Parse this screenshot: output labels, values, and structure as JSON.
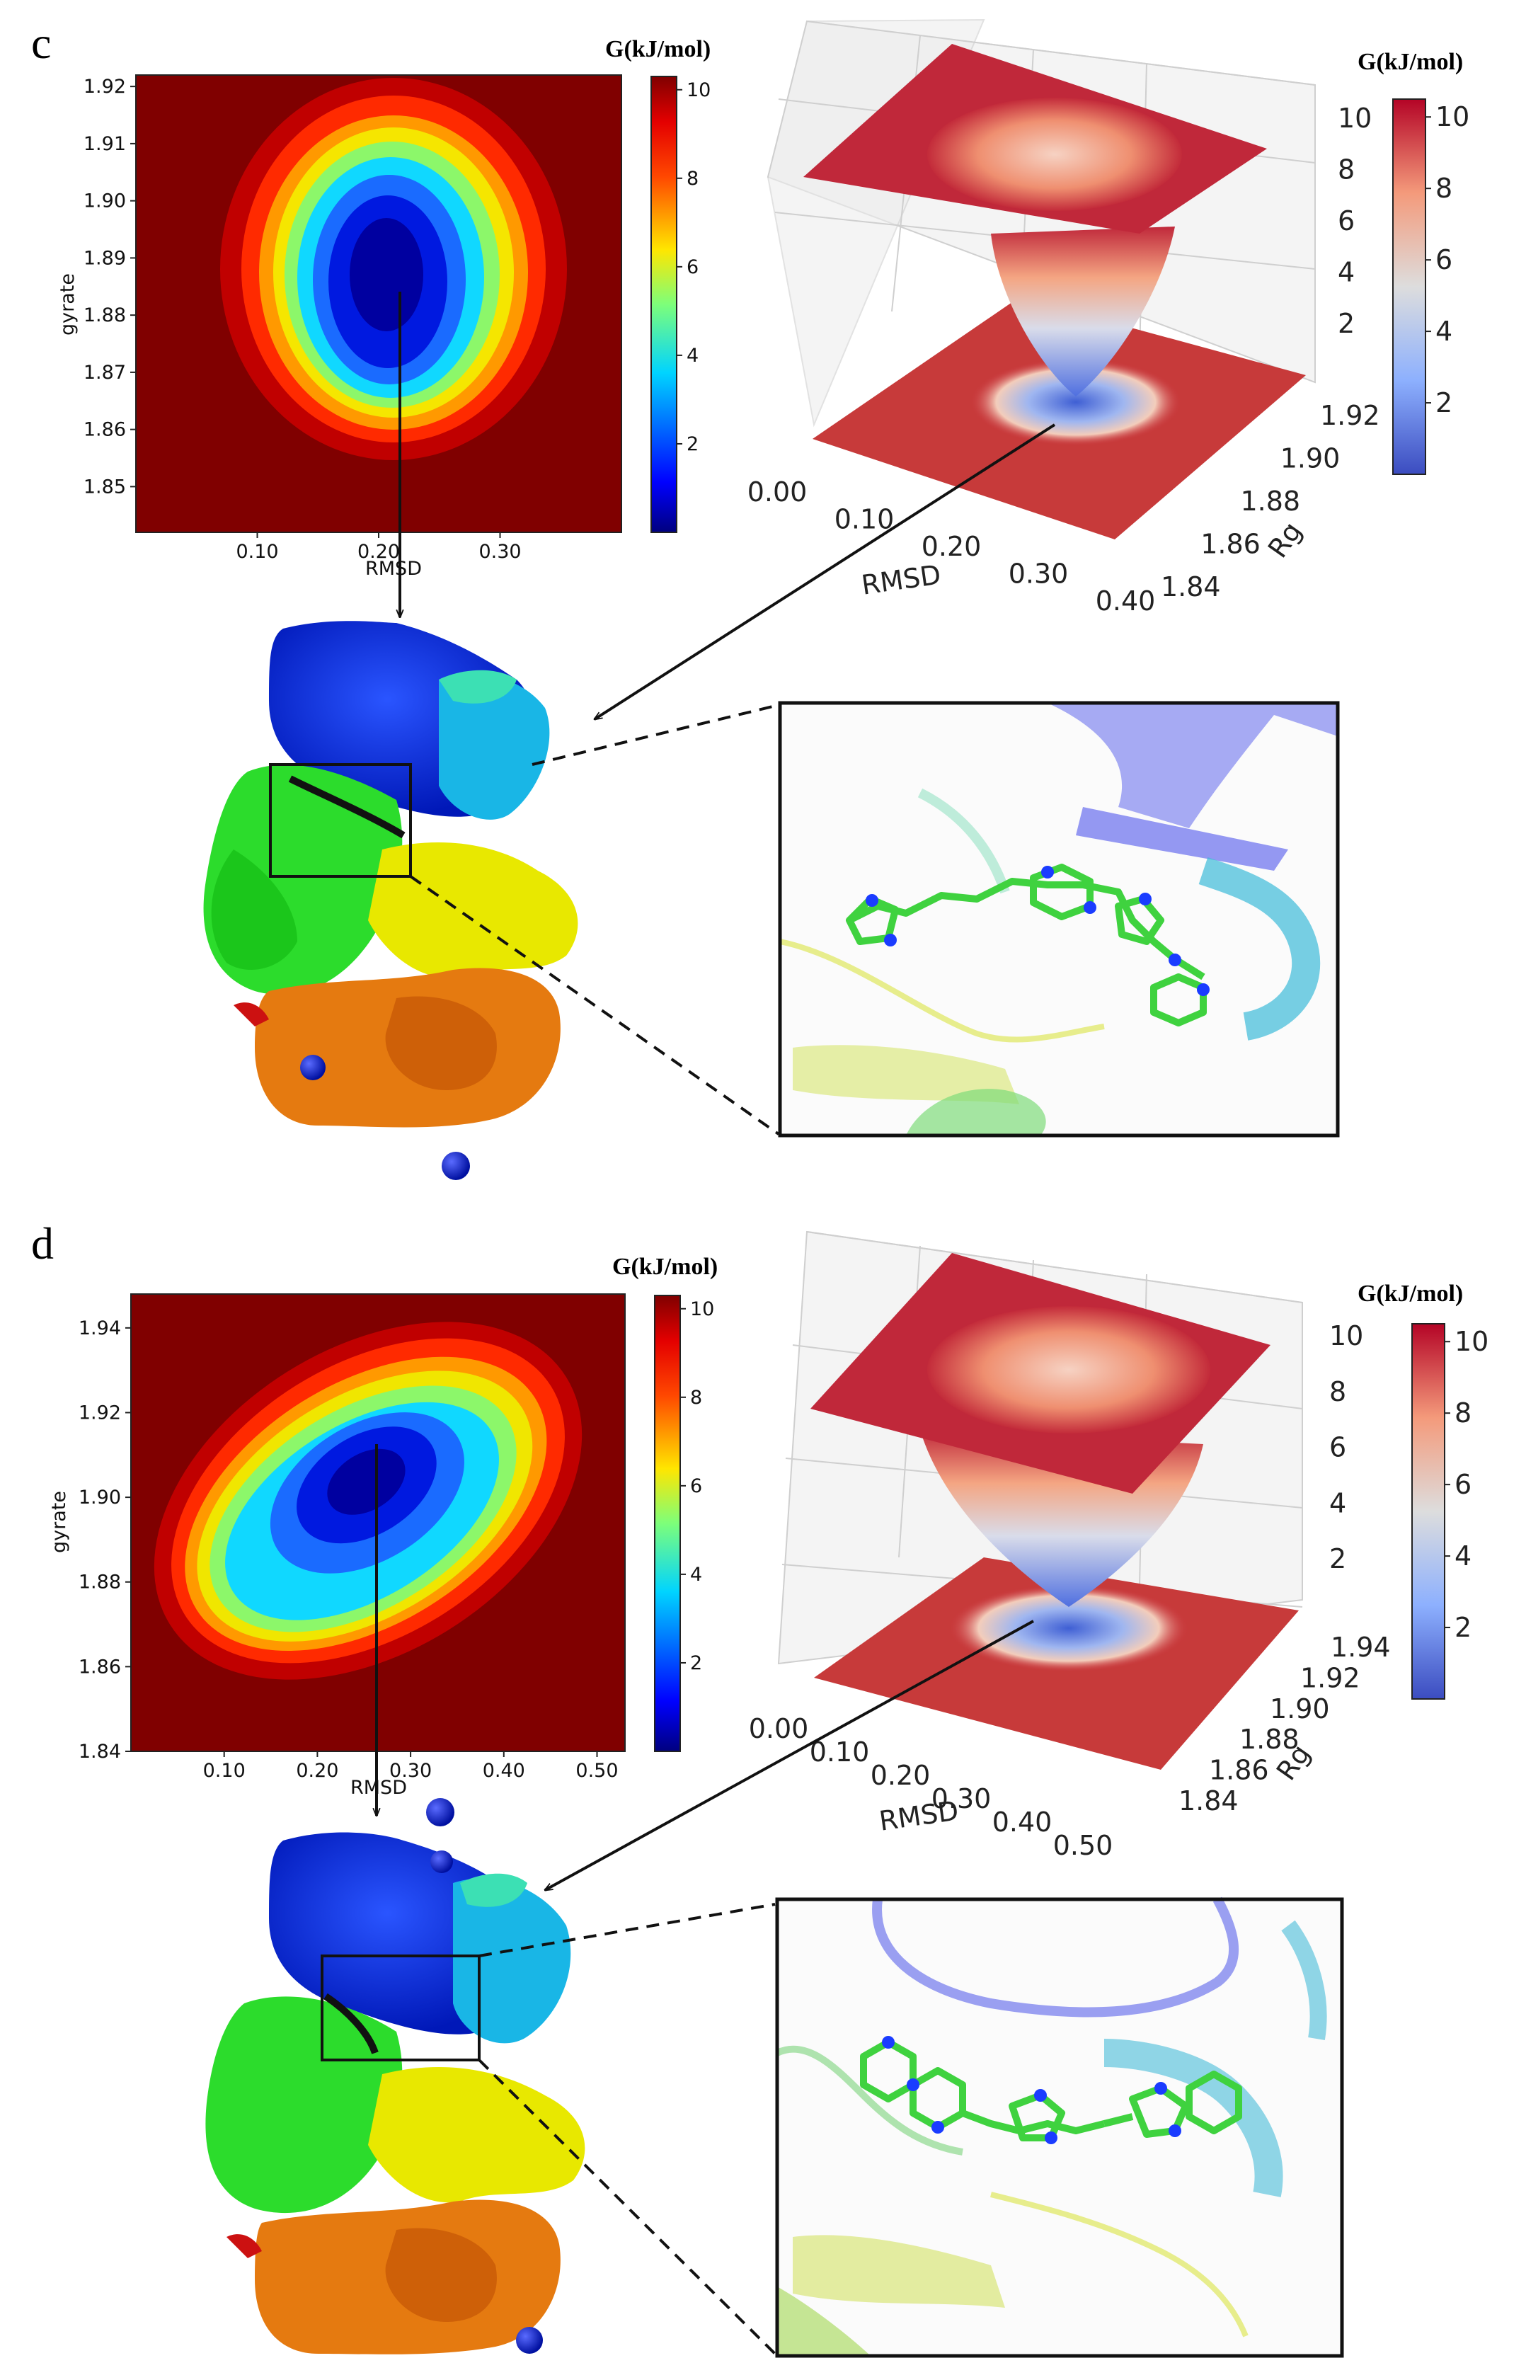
{
  "colors": {
    "jet_dark_red": "#800000",
    "coolwarm_red": "#b40426",
    "coolwarm_blue": "#3b4cc0",
    "arrow": "#111111"
  },
  "panels": [
    {
      "letter": "c",
      "colorbar_title_2d": "G(kJ/mol)",
      "colorbar_title_3d": "G(kJ/mol)",
      "icons": [
        "protein-surface-image",
        "ligand-closeup-image"
      ]
    },
    {
      "letter": "d",
      "colorbar_title_2d": "G(kJ/mol)",
      "colorbar_title_3d": "G(kJ/mol)",
      "icons": [
        "protein-surface-image",
        "ligand-closeup-image"
      ]
    }
  ],
  "chart_data": [
    {
      "panel": "c",
      "type": "heatmap",
      "xlabel": "RMSD",
      "ylabel": "gyrate",
      "xlim": [
        0.0,
        0.4
      ],
      "ylim": [
        1.842,
        1.922
      ],
      "xticks": [
        "0.10",
        "0.20",
        "0.30"
      ],
      "xtick_values": [
        0.1,
        0.2,
        0.3
      ],
      "yticks": [
        "1.85",
        "1.86",
        "1.87",
        "1.88",
        "1.89",
        "1.90",
        "1.91",
        "1.92"
      ],
      "ytick_values": [
        1.85,
        1.86,
        1.87,
        1.88,
        1.89,
        1.9,
        1.91,
        1.92
      ],
      "colorbar_ticks": [
        "2",
        "4",
        "6",
        "8",
        "10"
      ],
      "colorbar_range": [
        0,
        10.3
      ],
      "minimum": {
        "x": 0.21,
        "y": 1.884
      }
    },
    {
      "panel": "c",
      "type": "surface3d",
      "xlabel": "RMSD",
      "ylabel": "Rg",
      "xticks": [
        "0.00",
        "0.10",
        "0.20",
        "0.30",
        "0.40"
      ],
      "yticks": [
        "1.84",
        "1.86",
        "1.88",
        "1.90",
        "1.92"
      ],
      "zticks": [
        "2",
        "4",
        "6",
        "8",
        "10"
      ],
      "colorbar_ticks": [
        "2",
        "4",
        "6",
        "8",
        "10"
      ],
      "colorbar_range": [
        0,
        10.5
      ]
    },
    {
      "panel": "d",
      "type": "heatmap",
      "xlabel": "RMSD",
      "ylabel": "gyrate",
      "xlim": [
        0.0,
        0.53
      ],
      "ylim": [
        1.84,
        1.948
      ],
      "xticks": [
        "0.10",
        "0.20",
        "0.30",
        "0.40",
        "0.50"
      ],
      "xtick_values": [
        0.1,
        0.2,
        0.3,
        0.4,
        0.5
      ],
      "yticks": [
        "1.84",
        "1.86",
        "1.88",
        "1.90",
        "1.92",
        "1.94"
      ],
      "ytick_values": [
        1.84,
        1.86,
        1.88,
        1.9,
        1.92,
        1.94
      ],
      "colorbar_ticks": [
        "2",
        "4",
        "6",
        "8",
        "10"
      ],
      "colorbar_range": [
        0,
        10.3
      ],
      "minimum": {
        "x": 0.26,
        "y": 1.899
      }
    },
    {
      "panel": "d",
      "type": "surface3d",
      "xlabel": "RMSD",
      "ylabel": "Rg",
      "xticks": [
        "0.00",
        "0.10",
        "0.20",
        "0.30",
        "0.40",
        "0.50"
      ],
      "yticks": [
        "1.84",
        "1.86",
        "1.88",
        "1.90",
        "1.92",
        "1.94"
      ],
      "zticks": [
        "2",
        "4",
        "6",
        "8",
        "10"
      ],
      "colorbar_ticks": [
        "2",
        "4",
        "6",
        "8",
        "10"
      ],
      "colorbar_range": [
        0,
        10.5
      ]
    }
  ]
}
